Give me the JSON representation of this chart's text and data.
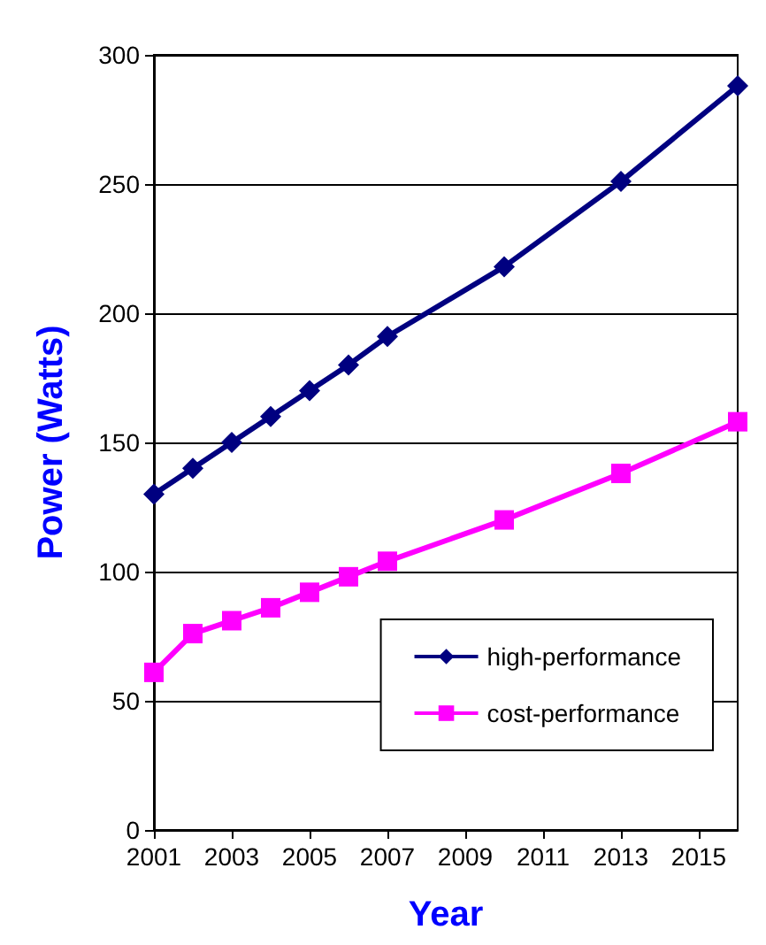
{
  "chart_data": {
    "type": "line",
    "xlabel": "Year",
    "ylabel": "Power (Watts)",
    "x": [
      2001,
      2002,
      2003,
      2004,
      2005,
      2006,
      2007,
      2010,
      2013,
      2016
    ],
    "series": [
      {
        "name": "high-performance",
        "color": "#000080",
        "marker": "diamond",
        "values": [
          130,
          140,
          150,
          160,
          170,
          180,
          191,
          218,
          251,
          288
        ]
      },
      {
        "name": "cost-performance",
        "color": "#ff00ff",
        "marker": "square",
        "values": [
          61,
          76,
          81,
          86,
          92,
          98,
          104,
          120,
          138,
          158
        ]
      }
    ],
    "xlim": [
      2001,
      2016
    ],
    "xticks": [
      2001,
      2003,
      2005,
      2007,
      2009,
      2011,
      2013,
      2015
    ],
    "ylim": [
      0,
      300
    ],
    "yticks": [
      0,
      50,
      100,
      150,
      200,
      250,
      300
    ],
    "grid": "y",
    "legend": "bottom right",
    "line_style": "solid"
  }
}
